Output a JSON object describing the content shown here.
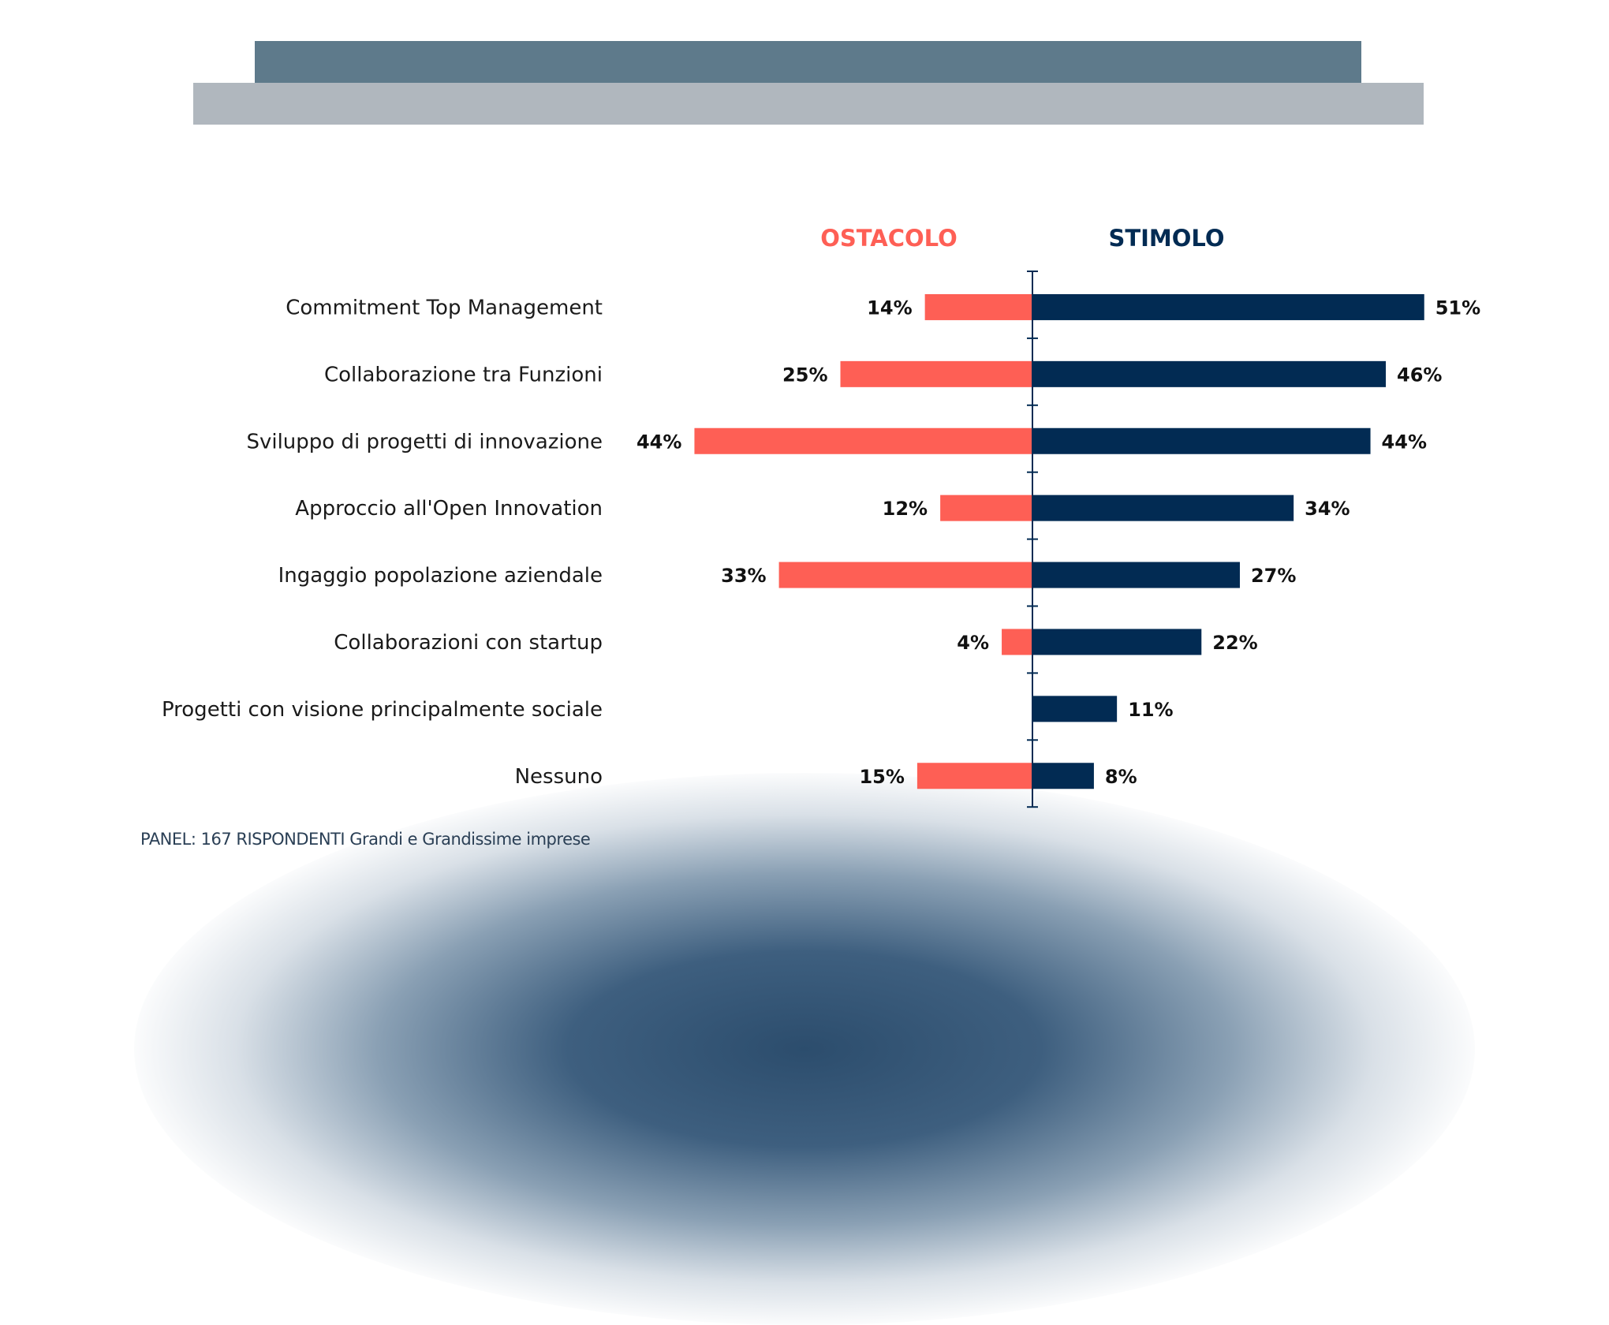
{
  "colors": {
    "ostacolo": "#fe5f55",
    "stimolo": "#022b53",
    "banner_dark": "#5e7a8b",
    "banner_light": "#b0b7be",
    "axis": "#022b53",
    "label": "#1a1a1a"
  },
  "chart_data": {
    "type": "bar",
    "orientation": "horizontal-diverging",
    "categories": [
      "Commitment Top Management",
      "Collaborazione tra Funzioni",
      "Sviluppo di progetti di innovazione",
      "Approccio all'Open Innovation",
      "Ingaggio popolazione aziendale",
      "Collaborazioni con startup",
      "Progetti con visione principalmente sociale",
      "Nessuno"
    ],
    "series": [
      {
        "name": "OSTACOLO",
        "values": [
          14,
          25,
          44,
          12,
          33,
          4,
          null,
          15
        ],
        "labels": [
          "14%",
          "25%",
          "44%",
          "12%",
          "33%",
          "4%",
          "",
          "15%"
        ]
      },
      {
        "name": "STIMOLO",
        "values": [
          51,
          46,
          44,
          34,
          27,
          22,
          11,
          8
        ],
        "labels": [
          "51%",
          "46%",
          "44%",
          "34%",
          "27%",
          "22%",
          "11%",
          "8%"
        ]
      }
    ],
    "unit": "%",
    "grid": false,
    "legend": "top"
  },
  "footer": "PANEL: 167 RISPONDENTI Grandi e Grandissime imprese"
}
